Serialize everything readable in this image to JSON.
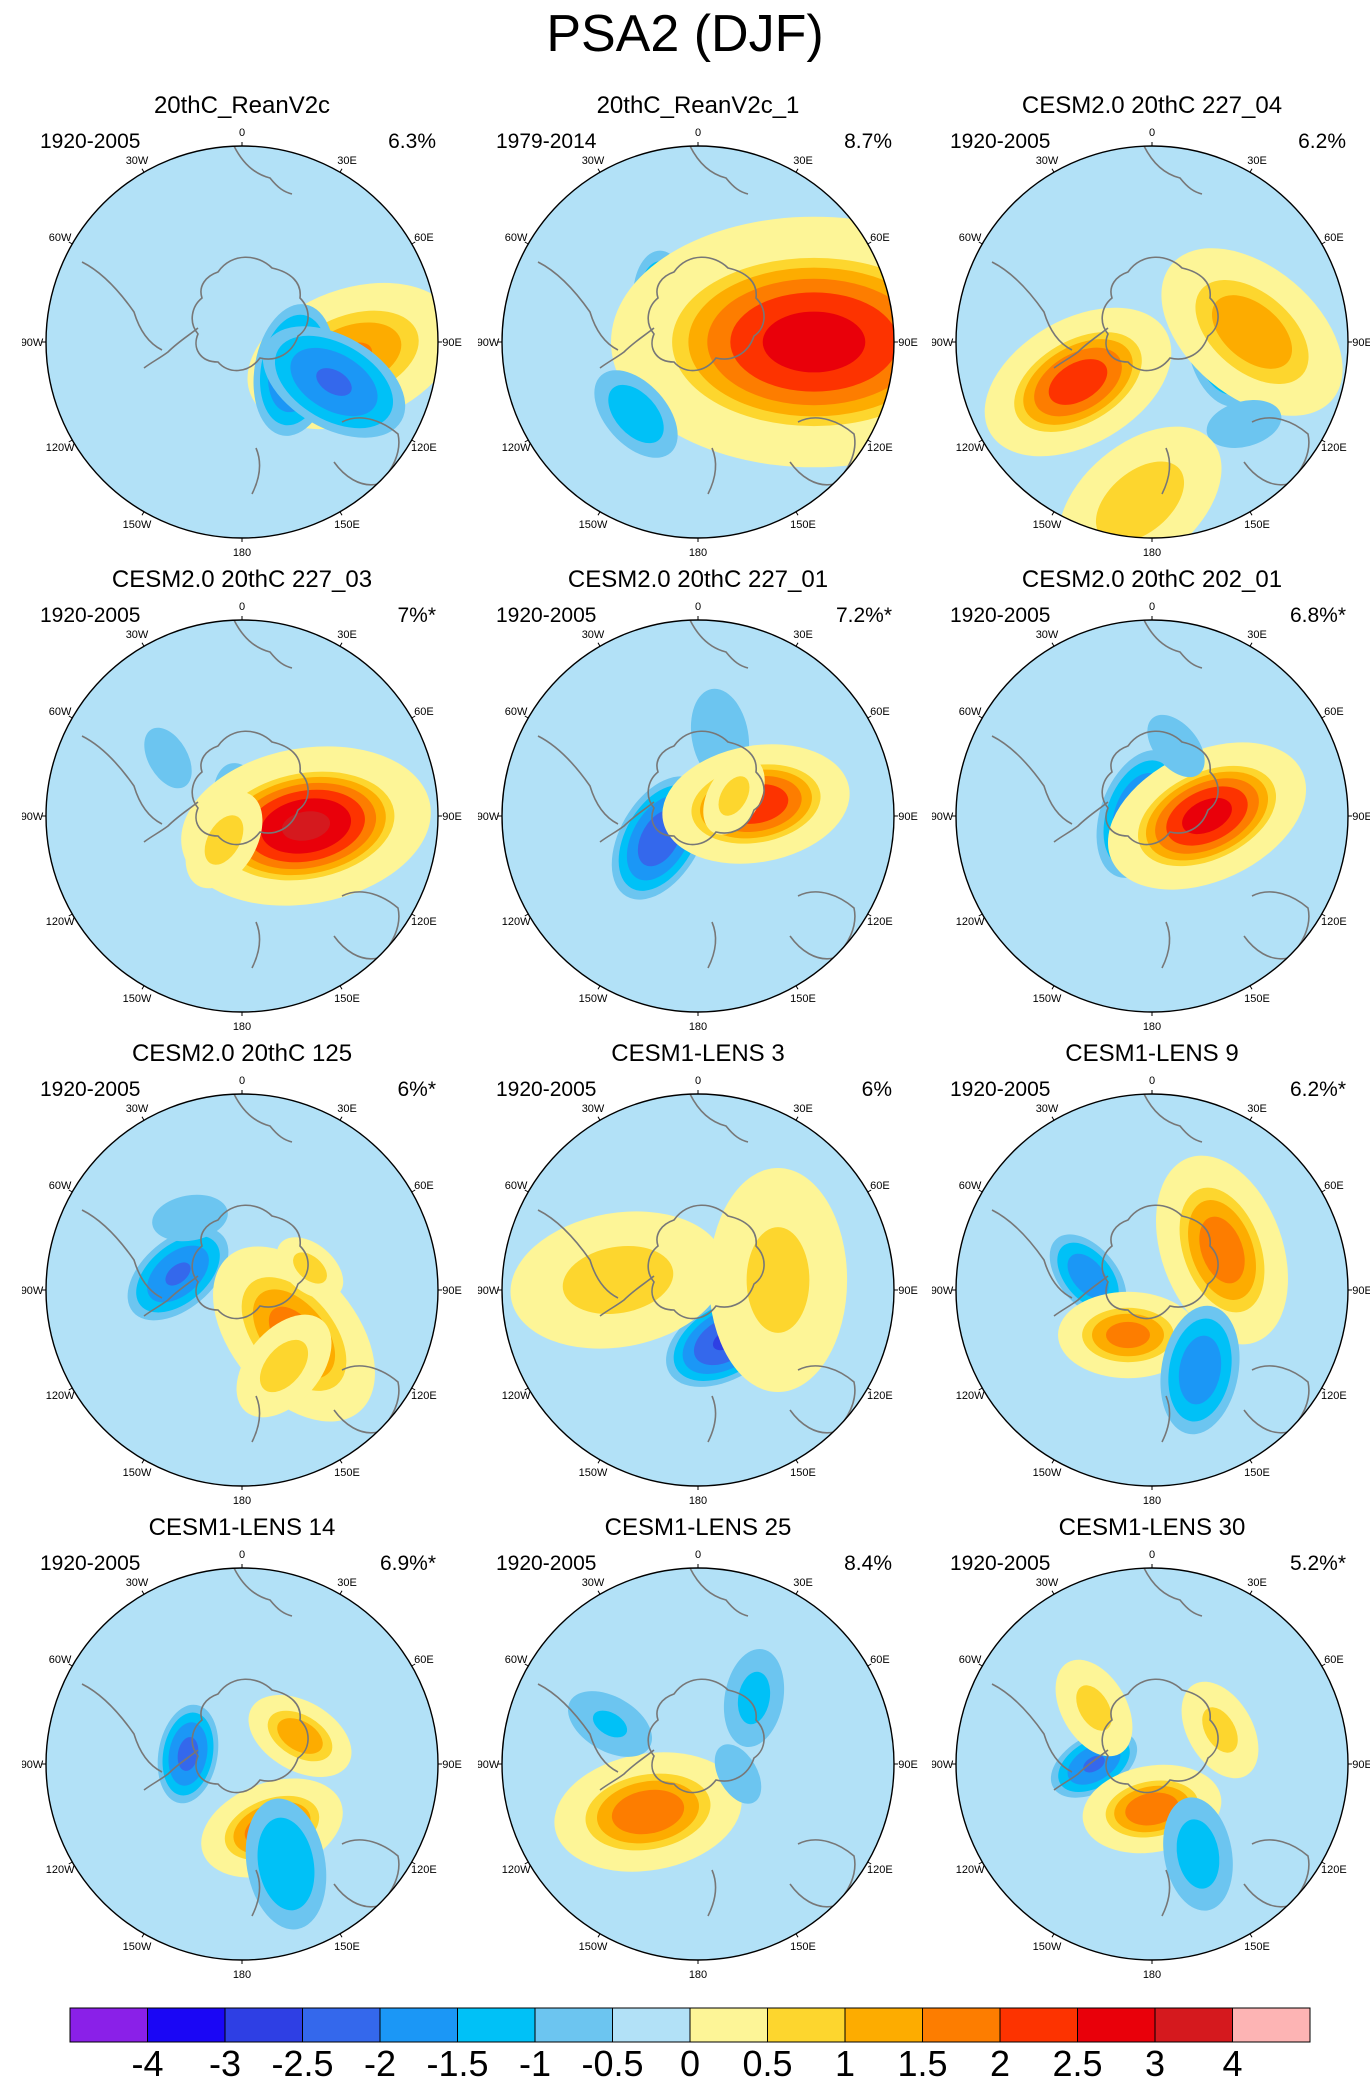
{
  "title": "PSA2 (DJF)",
  "chart_data": {
    "type": "polar_contour_map_grid",
    "projection": "south polar stereographic",
    "lon_labels": [
      "0",
      "30E",
      "60E",
      "90E",
      "120E",
      "150E",
      "180",
      "150W",
      "120W",
      "90W",
      "60W",
      "30W"
    ],
    "panels": [
      {
        "title": "20thC_ReanV2c",
        "period": "1920-2005",
        "variance": "6.3%",
        "blobs": [
          [
            -20,
            110,
            14,
            1.6,
            62
          ],
          [
            100,
            52,
            28,
            -2.2,
            56
          ],
          [
            210,
            92,
            40,
            -2.1,
            66
          ]
        ]
      },
      {
        "title": "20thC_ReanV2c_1",
        "period": "1979-2014",
        "variance": "8.7%",
        "blobs": [
          [
            -10,
            28,
            22,
            -1.2,
            50
          ],
          [
            90,
            -38,
            -46,
            -1.7,
            40
          ],
          [
            180,
            116,
            0,
            2.8,
            116
          ],
          [
            228,
            -62,
            72,
            -1.4,
            48
          ]
        ]
      },
      {
        "title": "CESM2.0 20thC 227_04",
        "period": "1920-2005",
        "variance": "6.2%",
        "blobs": [
          [
            -100,
            74,
            0,
            -2.0,
            56
          ],
          [
            150,
            -74,
            40,
            2.4,
            58
          ],
          [
            40,
            100,
            -10,
            1.5,
            60
          ],
          [
            -15,
            92,
            82,
            -1.0,
            40
          ],
          [
            -40,
            -12,
            160,
            1.0,
            54
          ]
        ]
      },
      {
        "title": "CESM2.0 20thC 227_03",
        "period": "1920-2005",
        "variance": "7%*",
        "blobs": [
          [
            -105,
            0,
            -8,
            -1.8,
            40
          ],
          [
            -10,
            64,
            10,
            3.2,
            72
          ],
          [
            60,
            -74,
            -58,
            -0.8,
            40
          ],
          [
            120,
            -18,
            24,
            0.9,
            30
          ]
        ]
      },
      {
        "title": "CESM2.0 20thC 227_01",
        "period": "1920-2005",
        "variance": "7.2%*",
        "blobs": [
          [
            -100,
            22,
            -80,
            -1.0,
            50
          ],
          [
            -60,
            -38,
            22,
            -2.4,
            56
          ],
          [
            -10,
            58,
            -12,
            2.5,
            54
          ],
          [
            120,
            36,
            -20,
            0.9,
            24
          ]
        ]
      },
      {
        "title": "CESM2.0 20thC 202_01",
        "period": "1920-2005",
        "variance": "6.8%*",
        "blobs": [
          [
            -70,
            -12,
            -2,
            -2.2,
            56
          ],
          [
            -25,
            55,
            0,
            2.8,
            60
          ],
          [
            50,
            24,
            -70,
            -0.8,
            44
          ]
        ]
      },
      {
        "title": "CESM2.0 20thC 125",
        "period": "1920-2005",
        "variance": "6%*",
        "blobs": [
          [
            -40,
            -64,
            -16,
            -2.1,
            50
          ],
          [
            50,
            52,
            44,
            1.8,
            58
          ],
          [
            -10,
            -52,
            -72,
            -1.0,
            40
          ],
          [
            40,
            68,
            -22,
            0.9,
            22
          ],
          [
            130,
            42,
            76,
            0.9,
            34
          ]
        ]
      },
      {
        "title": "CESM1-LENS 3",
        "period": "1920-2005",
        "variance": "6%",
        "blobs": [
          [
            -30,
            28,
            50,
            -2.6,
            54
          ],
          [
            -10,
            -80,
            -10,
            0.9,
            62
          ],
          [
            90,
            80,
            -10,
            0.8,
            64
          ]
        ]
      },
      {
        "title": "CESM1-LENS 9",
        "period": "1920-2005",
        "variance": "6.2%*",
        "blobs": [
          [
            50,
            -64,
            -14,
            -1.9,
            42
          ],
          [
            0,
            -24,
            45,
            1.8,
            40
          ],
          [
            70,
            70,
            -40,
            1.9,
            56
          ],
          [
            100,
            48,
            80,
            -1.9,
            56
          ]
        ]
      },
      {
        "title": "CESM1-LENS 14",
        "period": "1920-2005",
        "variance": "6.9%*",
        "blobs": [
          [
            -80,
            -54,
            -10,
            -2.2,
            42
          ],
          [
            -20,
            30,
            64,
            2.0,
            42
          ],
          [
            80,
            44,
            100,
            -1.5,
            60
          ],
          [
            30,
            58,
            -28,
            1.5,
            32
          ]
        ]
      },
      {
        "title": "CESM1-LENS 25",
        "period": "1920-2005",
        "variance": "8.4%",
        "blobs": [
          [
            -10,
            -50,
            48,
            2.0,
            54
          ],
          [
            30,
            -88,
            -40,
            -1.1,
            46
          ],
          [
            100,
            56,
            -66,
            -1.2,
            48
          ],
          [
            60,
            40,
            10,
            -1.0,
            34
          ]
        ]
      },
      {
        "title": "CESM1-LENS 30",
        "period": "1920-2005",
        "variance": "5.2%*",
        "blobs": [
          [
            -30,
            -58,
            0,
            -2.1,
            40
          ],
          [
            -10,
            0,
            45,
            2.0,
            40
          ],
          [
            80,
            46,
            90,
            -1.3,
            54
          ],
          [
            60,
            -58,
            -56,
            0.8,
            30
          ],
          [
            60,
            68,
            -34,
            0.8,
            30
          ]
        ]
      }
    ],
    "colorbar": {
      "levels": [
        "-4",
        "-3",
        "-2.5",
        "-2",
        "-1.5",
        "-1",
        "-0.5",
        "0",
        "0.5",
        "1",
        "1.5",
        "2",
        "2.5",
        "3",
        "4"
      ],
      "colors": [
        "#8a20e8",
        "#1a06f5",
        "#2e3fe4",
        "#3468ec",
        "#1b97f6",
        "#00c1f7",
        "#6cc5f0",
        "#b2e1f7",
        "#fdf597",
        "#fdd62e",
        "#fdac00",
        "#fd7d00",
        "#fd3300",
        "#e9000a",
        "#d5191e",
        "#fdb4b4"
      ]
    }
  }
}
